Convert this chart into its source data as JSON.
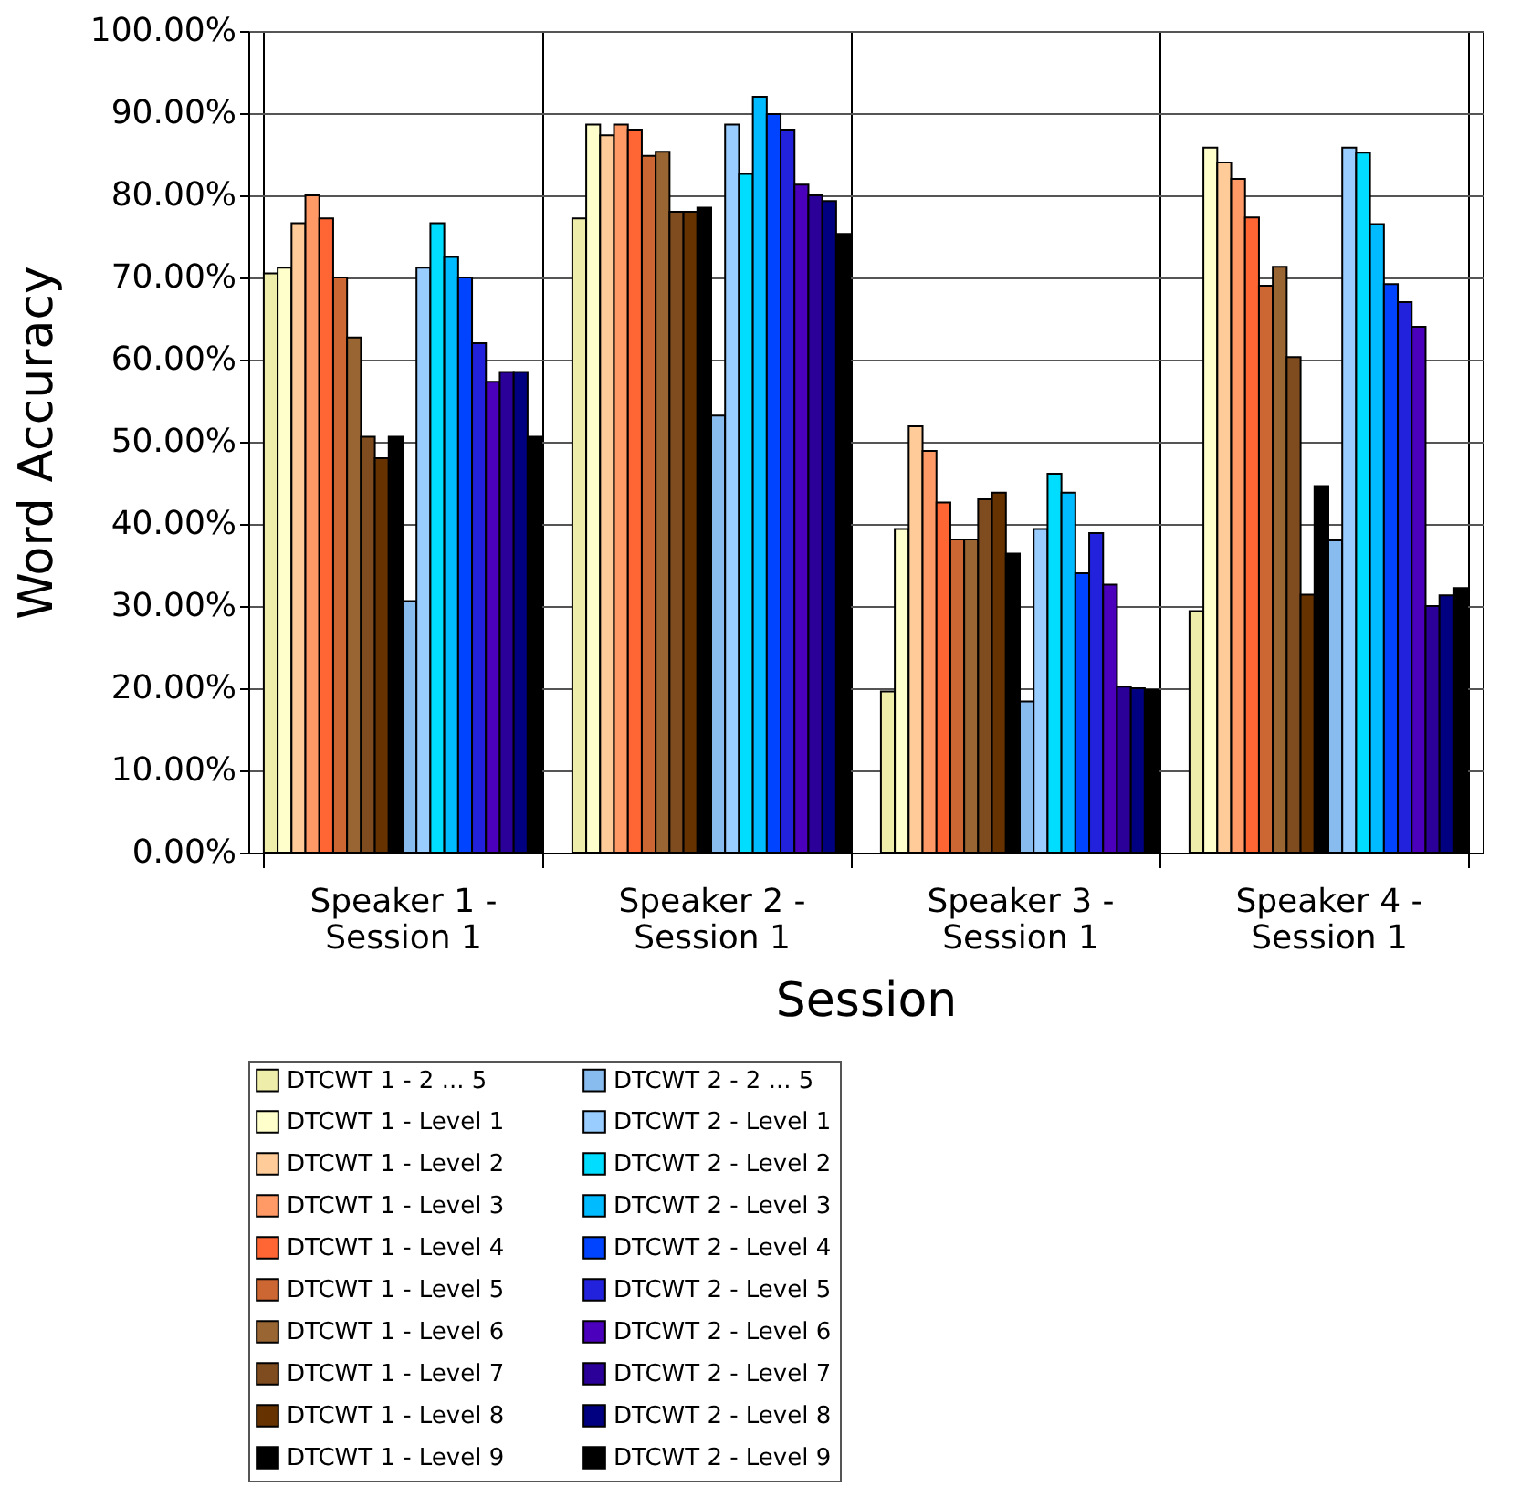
{
  "chart_data": {
    "type": "bar",
    "xlabel": "Session",
    "ylabel": "Word Accuracy",
    "categories": [
      "Speaker 1 - Session 1",
      "Speaker 2 - Session 1",
      "Speaker 3 - Session 1",
      "Speaker 4 - Session 1"
    ],
    "ylim": [
      0,
      100
    ],
    "yticks": [
      {
        "value": 0,
        "label": "0.00%"
      },
      {
        "value": 10,
        "label": "10.00%"
      },
      {
        "value": 20,
        "label": "20.00%"
      },
      {
        "value": 30,
        "label": "30.00%"
      },
      {
        "value": 40,
        "label": "40.00%"
      },
      {
        "value": 50,
        "label": "50.00%"
      },
      {
        "value": 60,
        "label": "60.00%"
      },
      {
        "value": 70,
        "label": "70.00%"
      },
      {
        "value": 80,
        "label": "80.00%"
      },
      {
        "value": 90,
        "label": "90.00%"
      },
      {
        "value": 100,
        "label": "100.00%"
      }
    ],
    "grid": true,
    "legend": "bottom",
    "series": [
      {
        "name": "DTCWT 1 - 2 ... 5",
        "color": "#eeeeaa",
        "values": [
          70.5,
          77.2,
          19.6,
          29.4
        ]
      },
      {
        "name": "DTCWT 1 - Level 1",
        "color": "#ffffcc",
        "values": [
          71.2,
          88.6,
          39.4,
          85.8
        ]
      },
      {
        "name": "DTCWT 1 - Level 2",
        "color": "#ffcc99",
        "values": [
          76.6,
          87.3,
          51.9,
          84.0
        ]
      },
      {
        "name": "DTCWT 1 - Level 3",
        "color": "#ff9966",
        "values": [
          80.0,
          88.6,
          48.9,
          82.0
        ]
      },
      {
        "name": "DTCWT 1 - Level 4",
        "color": "#ff6633",
        "values": [
          77.2,
          88.0,
          42.6,
          77.3
        ]
      },
      {
        "name": "DTCWT 1 - Level 5",
        "color": "#cc6633",
        "values": [
          70.0,
          84.8,
          38.1,
          69.0
        ]
      },
      {
        "name": "DTCWT 1 - Level 6",
        "color": "#996633",
        "values": [
          62.7,
          85.3,
          38.1,
          71.3
        ]
      },
      {
        "name": "DTCWT 1 - Level 7",
        "color": "#7f4c1f",
        "values": [
          50.6,
          78.0,
          43.0,
          60.3
        ]
      },
      {
        "name": "DTCWT 1 - Level 8",
        "color": "#663300",
        "values": [
          48.0,
          78.0,
          43.8,
          31.4
        ]
      },
      {
        "name": "DTCWT 1 - Level 9",
        "color": "#000000",
        "values": [
          50.6,
          78.5,
          36.4,
          44.6
        ]
      },
      {
        "name": "DTCWT 2 - 2 ... 5",
        "color": "#88bbee",
        "values": [
          30.6,
          53.2,
          18.4,
          38.0
        ]
      },
      {
        "name": "DTCWT 2 - Level 1",
        "color": "#99ccff",
        "values": [
          71.2,
          88.6,
          39.4,
          85.8
        ]
      },
      {
        "name": "DTCWT 2 - Level 2",
        "color": "#00ddff",
        "values": [
          76.6,
          82.6,
          46.1,
          85.2
        ]
      },
      {
        "name": "DTCWT 2 - Level 3",
        "color": "#00bbff",
        "values": [
          72.5,
          92.0,
          43.8,
          76.5
        ]
      },
      {
        "name": "DTCWT 2 - Level 4",
        "color": "#0044ff",
        "values": [
          70.0,
          89.9,
          34.0,
          69.2
        ]
      },
      {
        "name": "DTCWT 2 - Level 5",
        "color": "#2222dd",
        "values": [
          62.0,
          88.0,
          38.9,
          67.0
        ]
      },
      {
        "name": "DTCWT 2 - Level 6",
        "color": "#4b00bb",
        "values": [
          57.3,
          81.3,
          32.6,
          64.0
        ]
      },
      {
        "name": "DTCWT 2 - Level 7",
        "color": "#2a0099",
        "values": [
          58.5,
          80.0,
          20.2,
          30.0
        ]
      },
      {
        "name": "DTCWT 2 - Level 8",
        "color": "#000080",
        "values": [
          58.5,
          79.3,
          20.0,
          31.3
        ]
      },
      {
        "name": "DTCWT 2 - Level 9",
        "color": "#000000",
        "values": [
          50.6,
          75.3,
          19.8,
          32.2
        ]
      }
    ]
  }
}
